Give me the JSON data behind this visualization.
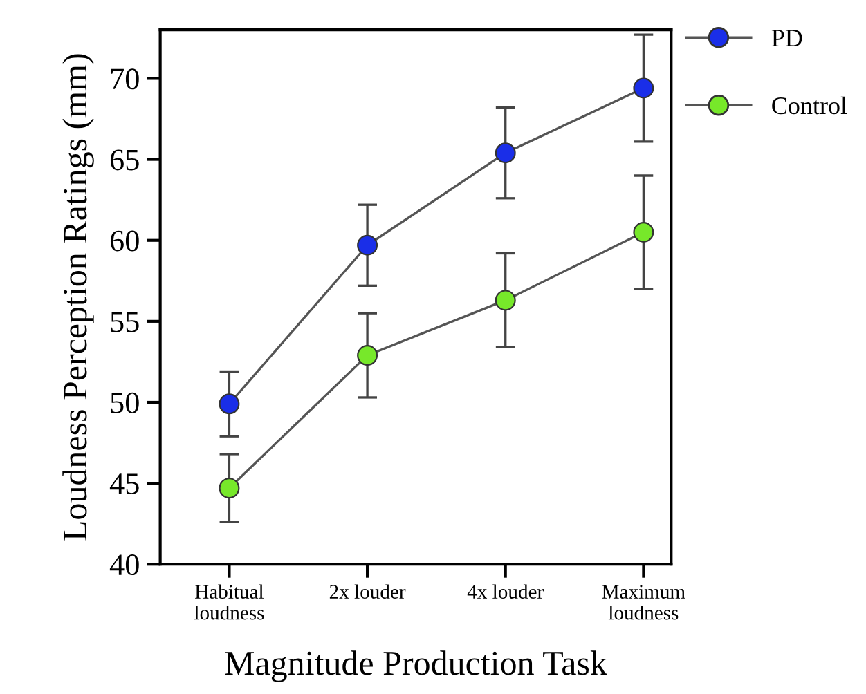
{
  "chart_data": {
    "type": "line",
    "xlabel": "Magnitude Production Task",
    "ylabel": "Loudness Perception Ratings (mm)",
    "categories": [
      "Habitual\nloudness",
      "2x louder",
      "4x louder",
      "Maximum\nloudness"
    ],
    "series": [
      {
        "name": "PD",
        "color": "#1a2ee8",
        "values": [
          49.9,
          59.7,
          65.4,
          69.4
        ],
        "errors": [
          2.0,
          2.5,
          2.8,
          3.3
        ]
      },
      {
        "name": "Control",
        "color": "#77e82a",
        "values": [
          44.7,
          52.9,
          56.3,
          60.5
        ],
        "errors": [
          2.1,
          2.6,
          2.9,
          3.5
        ]
      }
    ],
    "ylim": [
      40,
      73
    ],
    "yticks": [
      40,
      45,
      50,
      55,
      60,
      65,
      70
    ],
    "grid": false,
    "legend": "top right",
    "marker": "circle",
    "line_style": "solid"
  }
}
